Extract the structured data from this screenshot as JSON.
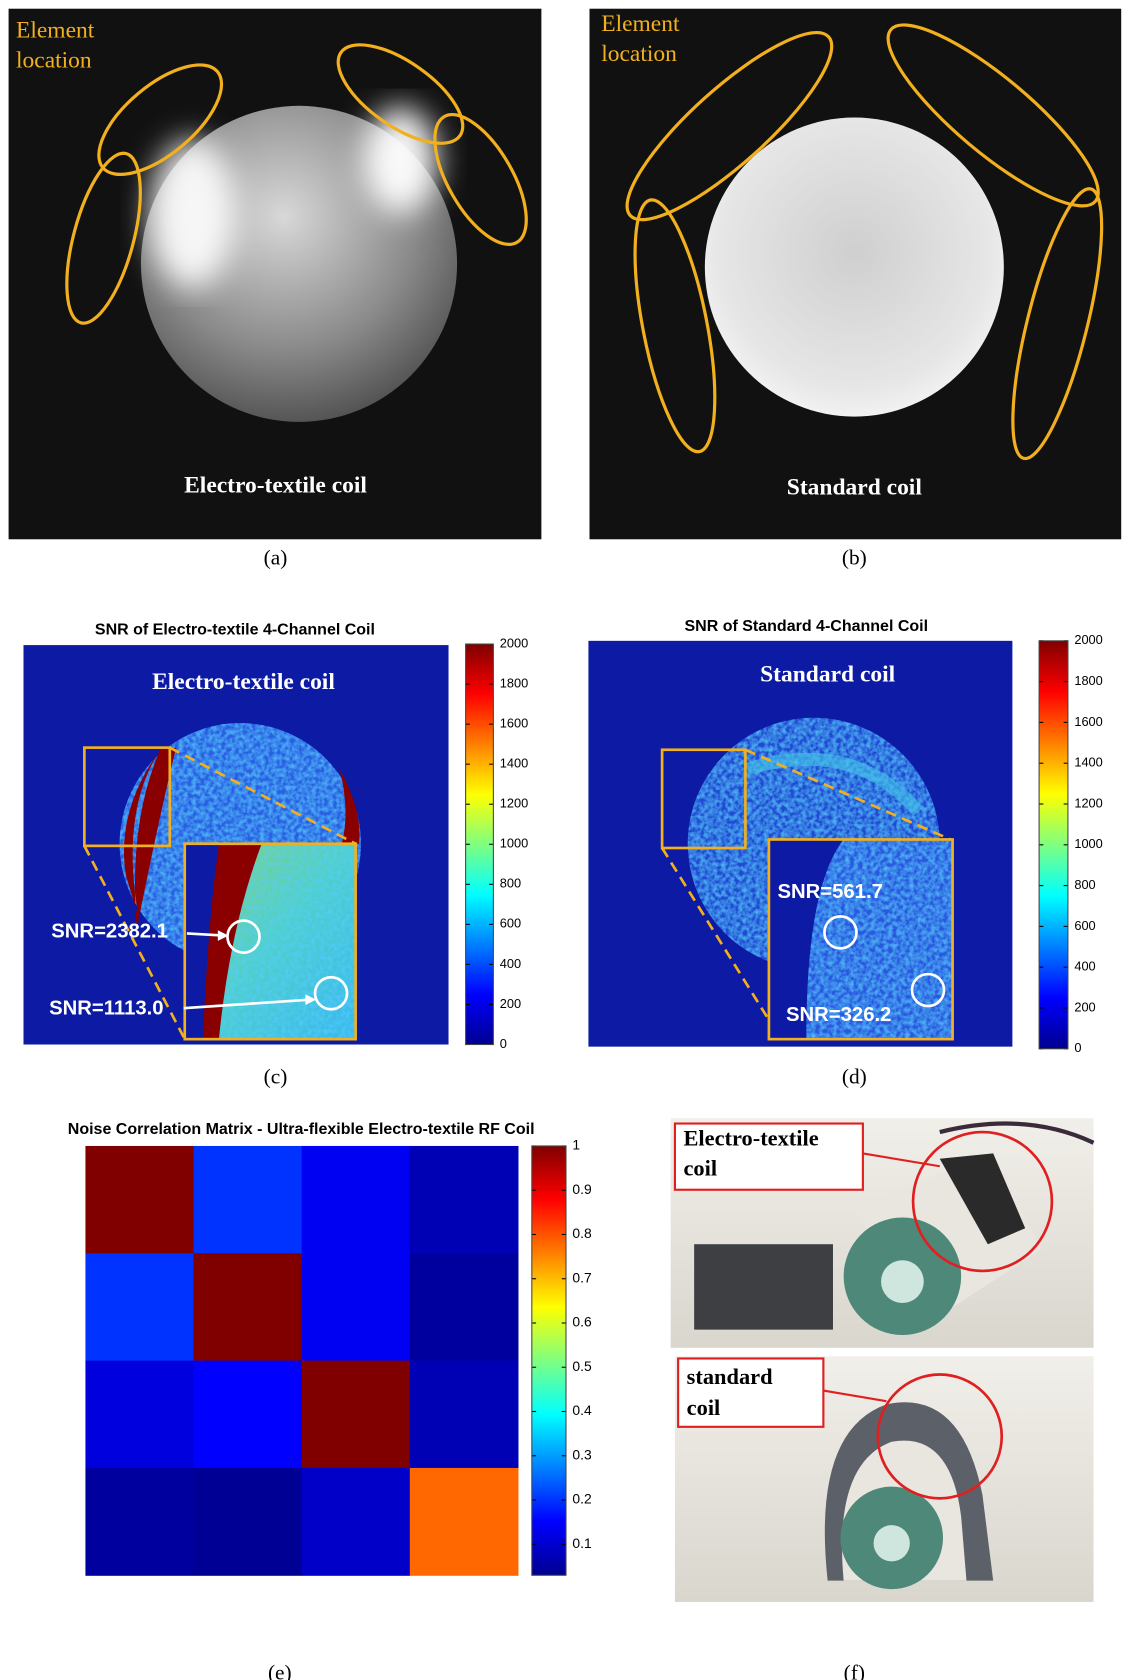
{
  "panels": {
    "a": {
      "annotation": [
        "Element",
        "location"
      ],
      "caption": "Electro-textile coil",
      "label": "(a)"
    },
    "b": {
      "annotation": [
        "Element",
        "location"
      ],
      "caption": "Standard coil",
      "label": "(b)"
    },
    "c": {
      "title": "SNR of Electro-textile 4-Channel Coil",
      "caption": "Electro-textile coil",
      "annotations": [
        "SNR=2382.1",
        "SNR=1113.0"
      ],
      "colorbar": {
        "clim": [
          0,
          2000
        ],
        "ticks": [
          0,
          200,
          400,
          600,
          800,
          1000,
          1200,
          1400,
          1600,
          1800,
          2000
        ]
      },
      "label": "(c)"
    },
    "d": {
      "title": "SNR of Standard 4-Channel Coil",
      "caption": "Standard coil",
      "annotations": [
        "SNR=561.7",
        "SNR=326.2"
      ],
      "colorbar": {
        "clim": [
          0,
          2000
        ],
        "ticks": [
          0,
          200,
          400,
          600,
          800,
          1000,
          1200,
          1400,
          1600,
          1800,
          2000
        ]
      },
      "label": "(d)"
    },
    "e": {
      "type": "heatmap",
      "title": "Noise Correlation Matrix - Ultra-flexible Electro-textile RF Coil",
      "values": [
        [
          1,
          0.2,
          0.14,
          0.08
        ],
        [
          0.2,
          1,
          0.14,
          0.06
        ],
        [
          0.12,
          0.15,
          1,
          0.08
        ],
        [
          0.06,
          0.05,
          0.1,
          0.78
        ]
      ],
      "colorbar": {
        "clim": [
          0.03,
          1
        ],
        "ticks": [
          0.1,
          0.2,
          0.3,
          0.4,
          0.5,
          0.6,
          0.7,
          0.8,
          0.9,
          1
        ]
      },
      "label": "(e)"
    },
    "f": {
      "callouts": [
        [
          "Electro-textile",
          "coil"
        ],
        [
          "standard",
          "coil"
        ]
      ],
      "label": "(f)"
    }
  }
}
